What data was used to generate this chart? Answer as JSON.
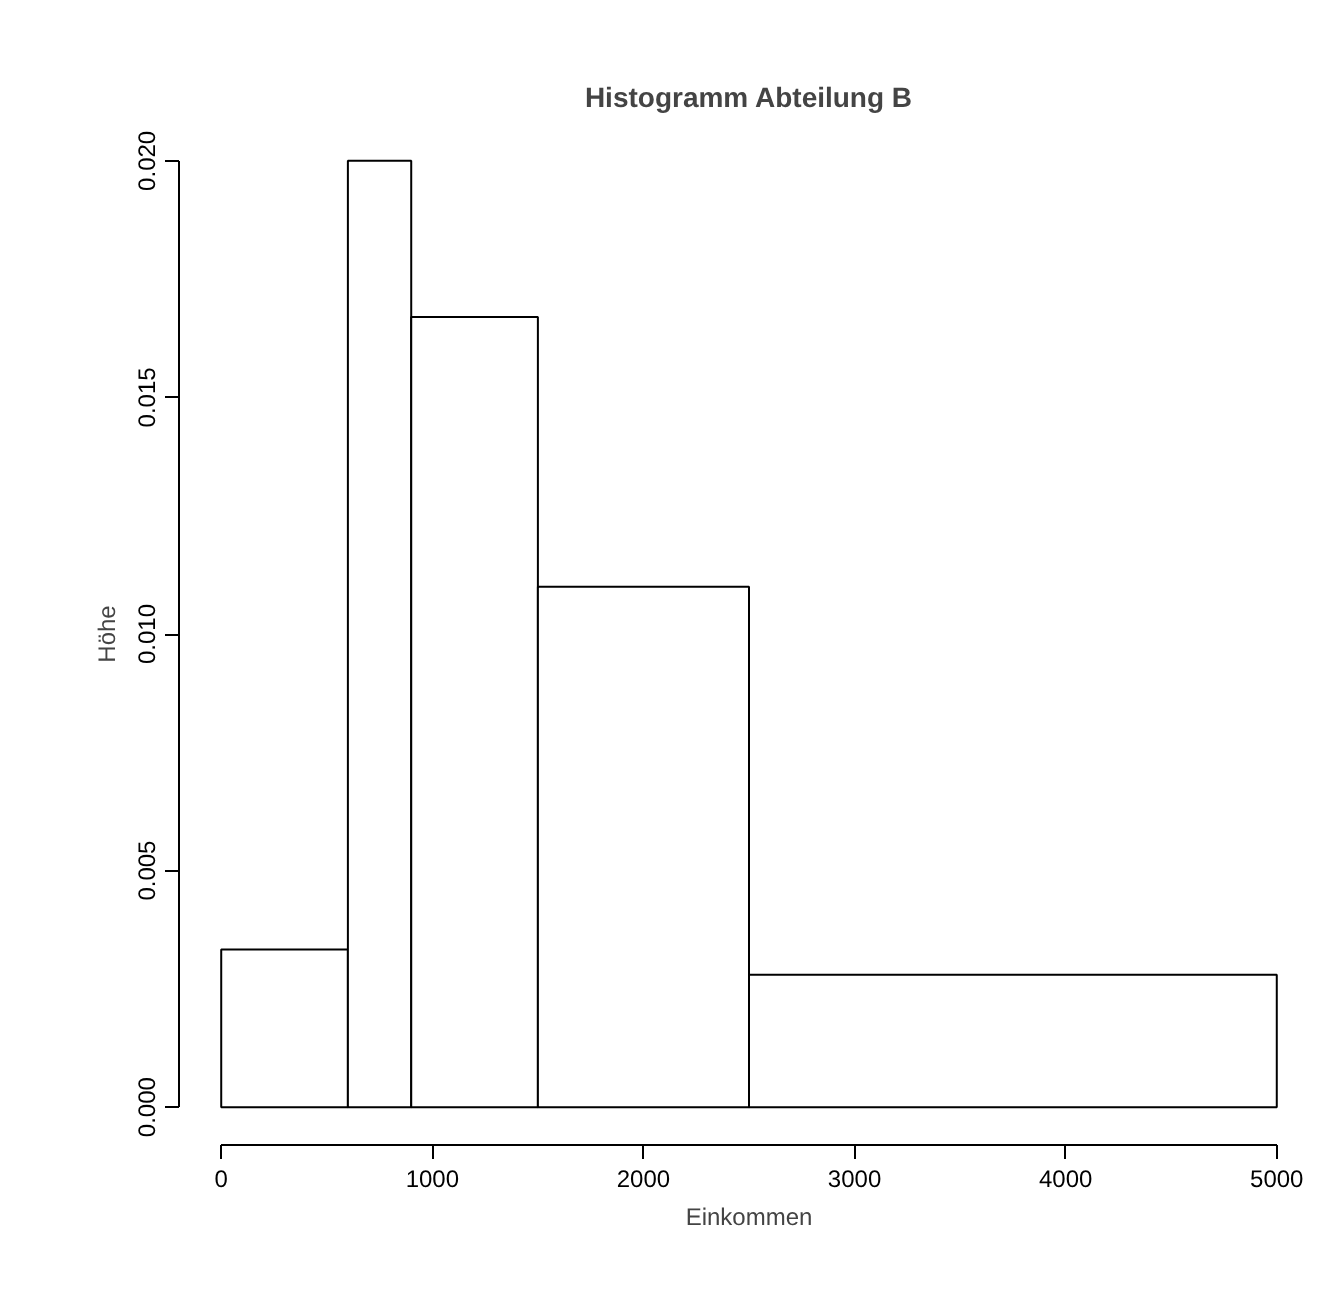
{
  "chart_data": {
    "type": "histogram",
    "title": "Histogramm Abteilung B",
    "xlabel": "Einkommen",
    "ylabel": "Höhe",
    "bins": [
      0,
      600,
      900,
      1500,
      2500,
      5000
    ],
    "values": [
      0.00333,
      0.02,
      0.0167,
      0.011,
      0.0028
    ],
    "color": "#ffffff",
    "xlim": [
      0,
      5000
    ],
    "ylim": [
      0,
      0.02
    ],
    "xticks": [
      0,
      1000,
      2000,
      3000,
      4000,
      5000
    ],
    "yticks": [
      {
        "value": 0,
        "label": "0.000"
      },
      {
        "value": 0.005,
        "label": "0.005"
      },
      {
        "value": 0.01,
        "label": "0.010"
      },
      {
        "value": 0.015,
        "label": "0.015"
      },
      {
        "value": 0.02,
        "label": "0.020"
      }
    ],
    "grid": false
  }
}
